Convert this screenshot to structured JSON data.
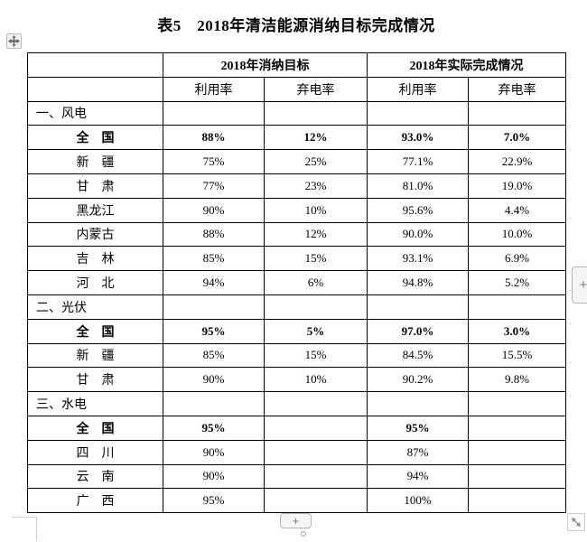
{
  "title": "表5　2018年清洁能源消纳目标完成情况",
  "table": {
    "group_headers": [
      "2018年消纳目标",
      "2018年实际完成情况"
    ],
    "sub_headers": [
      "利用率",
      "弃电率",
      "利用率",
      "弃电率"
    ],
    "rows": [
      {
        "type": "section",
        "label": "一、风电",
        "values": [
          "",
          "",
          "",
          ""
        ]
      },
      {
        "type": "total",
        "label": "全　国",
        "values": [
          "88%",
          "12%",
          "93.0%",
          "7.0%"
        ]
      },
      {
        "type": "data",
        "label": "新　疆",
        "values": [
          "75%",
          "25%",
          "77.1%",
          "22.9%"
        ]
      },
      {
        "type": "data",
        "label": "甘　肃",
        "values": [
          "77%",
          "23%",
          "81.0%",
          "19.0%"
        ]
      },
      {
        "type": "data",
        "label": "黑龙江",
        "values": [
          "90%",
          "10%",
          "95.6%",
          "4.4%"
        ]
      },
      {
        "type": "data",
        "label": "内蒙古",
        "values": [
          "88%",
          "12%",
          "90.0%",
          "10.0%"
        ]
      },
      {
        "type": "data",
        "label": "吉　林",
        "values": [
          "85%",
          "15%",
          "93.1%",
          "6.9%"
        ]
      },
      {
        "type": "data",
        "label": "河　北",
        "values": [
          "94%",
          "6%",
          "94.8%",
          "5.2%"
        ]
      },
      {
        "type": "section",
        "label": "二、光伏",
        "values": [
          "",
          "",
          "",
          ""
        ]
      },
      {
        "type": "total",
        "label": "全　国",
        "values": [
          "95%",
          "5%",
          "97.0%",
          "3.0%"
        ]
      },
      {
        "type": "data",
        "label": "新　疆",
        "values": [
          "85%",
          "15%",
          "84.5%",
          "15.5%"
        ]
      },
      {
        "type": "data",
        "label": "甘　肃",
        "values": [
          "90%",
          "10%",
          "90.2%",
          "9.8%"
        ]
      },
      {
        "type": "section",
        "label": "三、水电",
        "values": [
          "",
          "",
          "",
          ""
        ]
      },
      {
        "type": "total",
        "label": "全　国",
        "values": [
          "95%",
          "",
          "95%",
          ""
        ]
      },
      {
        "type": "data",
        "label": "四　川",
        "values": [
          "90%",
          "",
          "87%",
          ""
        ]
      },
      {
        "type": "data",
        "label": "云　南",
        "values": [
          "90%",
          "",
          "94%",
          ""
        ]
      },
      {
        "type": "data",
        "label": "广　西",
        "values": [
          "95%",
          "",
          "100%",
          ""
        ]
      }
    ]
  },
  "controls": {
    "move_handle_icon": "move-cross-icon",
    "resize_handle_icon": "diagonal-resize-icon",
    "insert_column_label": "+",
    "insert_row_label": "+"
  },
  "colors": {
    "text": "#000000",
    "table_border": "#000000",
    "control_border": "#b5b5b5",
    "control_bg": "#f5f5f5",
    "control_glyph": "#777777",
    "margin_mark": "#cfcfcf"
  }
}
